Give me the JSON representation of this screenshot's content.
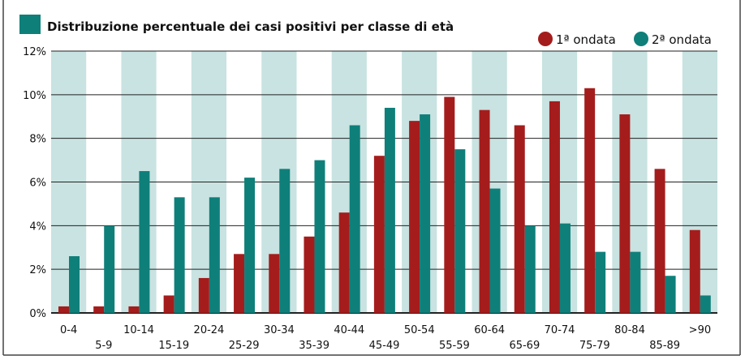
{
  "chart_data": {
    "type": "bar",
    "title": "Distribuzione percentuale dei casi positivi per classe di età",
    "xlabel": "",
    "ylabel": "",
    "ylim": [
      0,
      12
    ],
    "yticks": [
      "0%",
      "2%",
      "4%",
      "6%",
      "8%",
      "10%",
      "12%"
    ],
    "grid": true,
    "legend_position": "top-right",
    "categories": [
      "0-4",
      "5-9",
      "10-14",
      "15-19",
      "20-24",
      "25-29",
      "30-34",
      "35-39",
      "40-44",
      "45-49",
      "50-54",
      "55-59",
      "60-64",
      "65-69",
      "70-74",
      "75-79",
      "80-84",
      "85-89",
      ">90"
    ],
    "series": [
      {
        "name": "1ª ondata",
        "color": "#a51c1c",
        "values": [
          0.3,
          0.3,
          0.3,
          0.8,
          1.6,
          2.7,
          2.7,
          3.5,
          4.6,
          7.2,
          8.8,
          9.9,
          9.3,
          8.6,
          9.7,
          10.3,
          9.1,
          6.6,
          3.8
        ]
      },
      {
        "name": "2ª ondata",
        "color": "#0f7f7a",
        "values": [
          2.6,
          4.0,
          6.5,
          5.3,
          5.3,
          6.2,
          6.6,
          7.0,
          8.6,
          9.4,
          9.1,
          7.5,
          5.7,
          4.0,
          4.1,
          2.8,
          2.8,
          1.7,
          0.8
        ]
      }
    ]
  },
  "colors": {
    "band": "#c8e3e1",
    "accent": "#0f7f7a",
    "wave1": "#a51c1c",
    "wave2": "#0f7f7a",
    "grid": "#222222"
  }
}
